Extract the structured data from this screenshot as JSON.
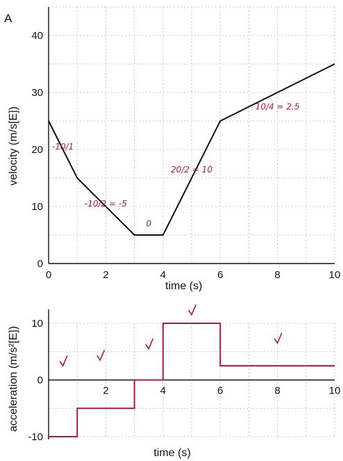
{
  "chart_data": [
    {
      "type": "line",
      "panel_label": "A",
      "xlabel": "time (s)",
      "ylabel": "velocity (m/s[E])",
      "xlim": [
        0,
        10
      ],
      "ylim": [
        0,
        45
      ],
      "x_ticks": [
        "0",
        "2",
        "4",
        "6",
        "8",
        "10"
      ],
      "y_ticks": [
        "0",
        "10",
        "20",
        "30",
        "40"
      ],
      "grid": true,
      "x": [
        0,
        1,
        3,
        4,
        6,
        10
      ],
      "y": [
        25,
        15,
        5,
        5,
        25,
        35
      ],
      "line_color": "#111111",
      "annotations": [
        {
          "text": "-10/1",
          "x": 0.5,
          "y": 20
        },
        {
          "text": "-10/2 = -5",
          "x": 2,
          "y": 10
        },
        {
          "text": "0",
          "x": 3.5,
          "y": 6.5
        },
        {
          "text": "20/2 = 10",
          "x": 5,
          "y": 16
        },
        {
          "text": "10/4 = 2.5",
          "x": 8,
          "y": 27
        }
      ],
      "annotation_color": "#b3163f"
    },
    {
      "type": "line",
      "step": true,
      "xlabel": "time (s)",
      "ylabel": "acceleration (m/s²[E])",
      "xlim": [
        0,
        10
      ],
      "ylim": [
        -10,
        10
      ],
      "x_ticks": [
        "2",
        "4",
        "6",
        "8",
        "10"
      ],
      "y_ticks": [
        "-10",
        "0",
        "10"
      ],
      "grid": true,
      "segments": [
        {
          "x0": 0,
          "x1": 1,
          "value": -10
        },
        {
          "x0": 1,
          "x1": 3,
          "value": -5
        },
        {
          "x0": 3,
          "x1": 4,
          "value": 0
        },
        {
          "x0": 4,
          "x1": 6,
          "value": 10
        },
        {
          "x0": 6,
          "x1": 10,
          "value": 2.5
        }
      ],
      "line_color": "#b3163f",
      "check_marks": [
        {
          "x": 0.5,
          "y": 3
        },
        {
          "x": 1.8,
          "y": 4
        },
        {
          "x": 3.5,
          "y": 6
        },
        {
          "x": 5,
          "y": 12
        },
        {
          "x": 8,
          "y": 7
        }
      ]
    }
  ]
}
